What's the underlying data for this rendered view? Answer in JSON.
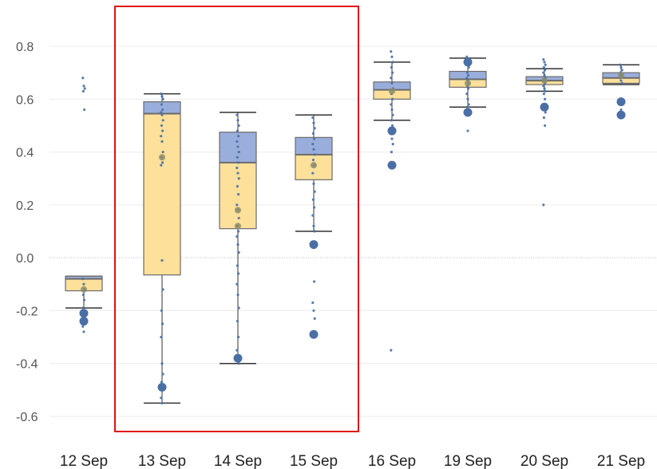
{
  "colors": {
    "upper_box": "#9aaedc",
    "lower_box": "#fde09a",
    "box_outline": "#6b6b6b",
    "whisker": "#333333",
    "dot": "#4a6fa5",
    "dot_olive": "#8c8c6a",
    "grid": "#ececec",
    "zero_line": "#bdbdbd",
    "highlight": "#e01010"
  },
  "highlight": {
    "categories": [
      "13 Sep",
      "14 Sep",
      "15 Sep"
    ]
  },
  "chart_data": {
    "type": "box",
    "categories": [
      "12 Sep",
      "13 Sep",
      "14 Sep",
      "15 Sep",
      "16 Sep",
      "19 Sep",
      "20 Sep",
      "21 Sep"
    ],
    "y_ticks": [
      "0.8",
      "0.6",
      "0.4",
      "0.2",
      "0.0",
      "-0.2",
      "-0.4",
      "-0.6"
    ],
    "y_tick_values": [
      0.8,
      0.6,
      0.4,
      0.2,
      0.0,
      -0.2,
      -0.4,
      -0.6
    ],
    "ylim": [
      -0.63,
      0.86
    ],
    "grid": true,
    "boxes": [
      {
        "category": "12 Sep",
        "whisker_low": -0.19,
        "q1": -0.125,
        "median": -0.08,
        "q3": -0.07,
        "whisker_high": -0.07
      },
      {
        "category": "13 Sep",
        "whisker_low": -0.55,
        "q1": -0.065,
        "median": 0.545,
        "q3": 0.59,
        "whisker_high": 0.62
      },
      {
        "category": "14 Sep",
        "whisker_low": -0.4,
        "q1": 0.11,
        "median": 0.36,
        "q3": 0.475,
        "whisker_high": 0.55
      },
      {
        "category": "15 Sep",
        "whisker_low": 0.1,
        "q1": 0.295,
        "median": 0.39,
        "q3": 0.455,
        "whisker_high": 0.54
      },
      {
        "category": "16 Sep",
        "whisker_low": 0.52,
        "q1": 0.6,
        "median": 0.635,
        "q3": 0.665,
        "whisker_high": 0.74
      },
      {
        "category": "19 Sep",
        "whisker_low": 0.57,
        "q1": 0.645,
        "median": 0.675,
        "q3": 0.705,
        "whisker_high": 0.755
      },
      {
        "category": "20 Sep",
        "whisker_low": 0.63,
        "q1": 0.655,
        "median": 0.67,
        "q3": 0.685,
        "whisker_high": 0.715
      },
      {
        "category": "21 Sep",
        "whisker_low": 0.655,
        "q1": 0.66,
        "median": 0.68,
        "q3": 0.7,
        "whisker_high": 0.73
      }
    ],
    "points": [
      {
        "category": "12 Sep",
        "values": [
          0.68,
          0.65,
          0.64,
          0.63,
          0.56,
          -0.08,
          -0.1,
          -0.12,
          -0.14,
          -0.16,
          -0.19,
          -0.2,
          -0.21,
          -0.22,
          -0.24,
          -0.26,
          -0.28
        ],
        "large": [
          -0.21,
          -0.24
        ],
        "olive": [
          -0.12
        ]
      },
      {
        "category": "13 Sep",
        "values": [
          0.62,
          0.61,
          0.6,
          0.58,
          0.56,
          0.55,
          0.54,
          0.52,
          0.5,
          0.48,
          0.46,
          0.44,
          0.4,
          0.38,
          0.36,
          0.35,
          -0.01,
          -0.12,
          -0.2,
          -0.25,
          -0.3,
          -0.4,
          -0.44,
          -0.47,
          -0.5,
          -0.53,
          -0.55
        ],
        "large": [
          -0.49
        ],
        "olive": [
          0.38
        ]
      },
      {
        "category": "14 Sep",
        "values": [
          0.54,
          0.52,
          0.5,
          0.48,
          0.46,
          0.44,
          0.42,
          0.4,
          0.38,
          0.36,
          0.34,
          0.32,
          0.3,
          0.27,
          0.24,
          0.2,
          0.18,
          0.15,
          0.12,
          0.1,
          0.08,
          0.05,
          0.02,
          -0.03,
          -0.06,
          -0.1,
          -0.14,
          -0.19,
          -0.24,
          -0.3,
          -0.35,
          -0.38,
          -0.4
        ],
        "large": [
          -0.38
        ],
        "olive": [
          0.18,
          0.12
        ]
      },
      {
        "category": "15 Sep",
        "values": [
          0.53,
          0.51,
          0.49,
          0.47,
          0.45,
          0.43,
          0.41,
          0.39,
          0.37,
          0.35,
          0.32,
          0.28,
          0.25,
          0.22,
          0.19,
          0.16,
          0.12,
          0.1,
          0.05,
          -0.09,
          -0.17,
          -0.2,
          -0.23,
          -0.29
        ],
        "large": [
          0.05,
          -0.29
        ],
        "olive": [
          0.35
        ]
      },
      {
        "category": "16 Sep",
        "values": [
          0.78,
          0.76,
          0.74,
          0.72,
          0.7,
          0.68,
          0.66,
          0.64,
          0.62,
          0.6,
          0.58,
          0.56,
          0.54,
          0.52,
          0.5,
          0.48,
          0.45,
          0.43,
          0.4,
          0.35,
          -0.35
        ],
        "large": [
          0.48,
          0.35
        ],
        "olive": [
          0.63
        ]
      },
      {
        "category": "19 Sep",
        "values": [
          0.76,
          0.74,
          0.72,
          0.7,
          0.69,
          0.68,
          0.67,
          0.66,
          0.65,
          0.64,
          0.62,
          0.6,
          0.58,
          0.57,
          0.55,
          0.54,
          0.48
        ],
        "large": [
          0.74,
          0.55
        ],
        "olive": [
          0.66
        ]
      },
      {
        "category": "20 Sep",
        "values": [
          0.75,
          0.74,
          0.73,
          0.72,
          0.71,
          0.7,
          0.69,
          0.68,
          0.67,
          0.66,
          0.65,
          0.64,
          0.63,
          0.62,
          0.6,
          0.58,
          0.57,
          0.55,
          0.53,
          0.5,
          0.2
        ],
        "large": [
          0.57
        ],
        "olive": [
          0.67
        ]
      },
      {
        "category": "21 Sep",
        "values": [
          0.73,
          0.72,
          0.71,
          0.7,
          0.69,
          0.68,
          0.67,
          0.66,
          0.6,
          0.59,
          0.58,
          0.56,
          0.54
        ],
        "large": [
          0.59,
          0.54
        ],
        "olive": [
          0.69
        ]
      }
    ]
  }
}
